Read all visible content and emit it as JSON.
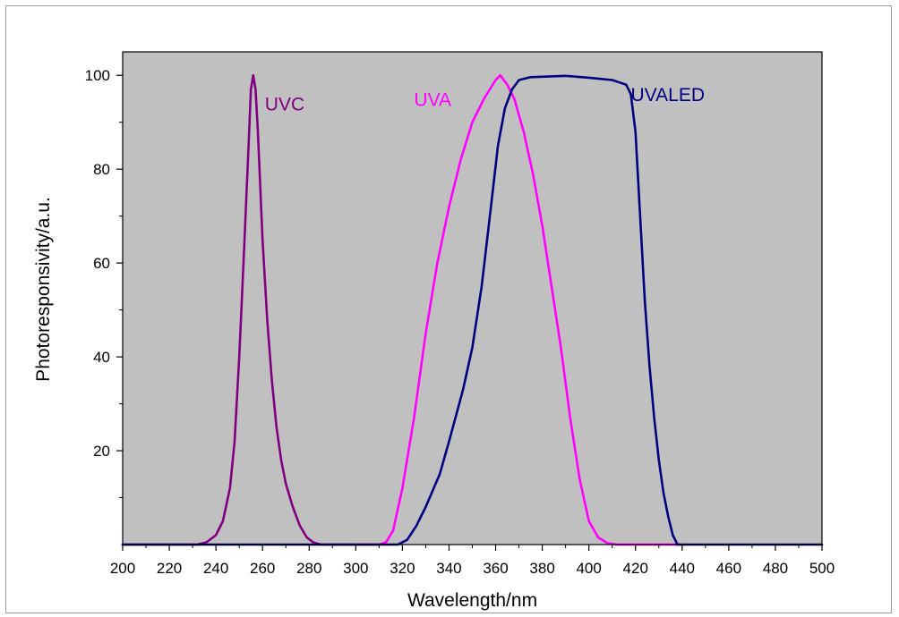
{
  "chart_data": {
    "type": "line",
    "xlabel": "Wavelength/nm",
    "ylabel": "Photoresponsivity/a.u.",
    "xlim": [
      200,
      500
    ],
    "ylim": [
      0,
      105
    ],
    "x_ticks": [
      200,
      220,
      240,
      260,
      280,
      300,
      320,
      340,
      360,
      380,
      400,
      420,
      440,
      460,
      480,
      500
    ],
    "y_ticks": [
      20,
      40,
      60,
      80,
      100
    ],
    "grid": false,
    "background_color": "#c0c0c0",
    "series": [
      {
        "name": "UVC",
        "color": "#800080",
        "label_at": [
          261,
          94
        ],
        "points": [
          [
            200,
            0
          ],
          [
            232,
            0
          ],
          [
            236,
            0.5
          ],
          [
            240,
            2
          ],
          [
            243,
            5
          ],
          [
            246,
            12
          ],
          [
            248,
            22
          ],
          [
            250,
            40
          ],
          [
            252,
            62
          ],
          [
            254,
            85
          ],
          [
            255,
            97
          ],
          [
            256,
            100
          ],
          [
            257,
            97
          ],
          [
            258,
            88
          ],
          [
            260,
            65
          ],
          [
            262,
            48
          ],
          [
            264,
            35
          ],
          [
            266,
            25
          ],
          [
            268,
            18
          ],
          [
            270,
            13
          ],
          [
            273,
            8
          ],
          [
            276,
            4
          ],
          [
            279,
            1.5
          ],
          [
            282,
            0.4
          ],
          [
            285,
            0
          ],
          [
            300,
            0
          ]
        ]
      },
      {
        "name": "UVA",
        "color": "#ff00ff",
        "label_at": [
          325,
          95
        ],
        "points": [
          [
            300,
            0
          ],
          [
            310,
            0
          ],
          [
            313,
            0.5
          ],
          [
            316,
            3
          ],
          [
            320,
            12
          ],
          [
            325,
            27
          ],
          [
            330,
            45
          ],
          [
            335,
            60
          ],
          [
            340,
            72
          ],
          [
            345,
            82
          ],
          [
            350,
            90
          ],
          [
            355,
            95
          ],
          [
            360,
            99
          ],
          [
            362,
            100
          ],
          [
            365,
            98
          ],
          [
            368,
            95
          ],
          [
            372,
            88
          ],
          [
            376,
            79
          ],
          [
            380,
            68
          ],
          [
            384,
            55
          ],
          [
            388,
            42
          ],
          [
            392,
            27
          ],
          [
            396,
            14
          ],
          [
            400,
            5
          ],
          [
            404,
            1.5
          ],
          [
            408,
            0.3
          ],
          [
            412,
            0
          ],
          [
            440,
            0
          ]
        ]
      },
      {
        "name": "UVALED",
        "color": "#000080",
        "label_at": [
          418,
          96
        ],
        "points": [
          [
            200,
            0
          ],
          [
            318,
            0
          ],
          [
            322,
            1
          ],
          [
            326,
            4
          ],
          [
            330,
            8
          ],
          [
            336,
            15
          ],
          [
            340,
            22
          ],
          [
            346,
            33
          ],
          [
            350,
            42
          ],
          [
            354,
            55
          ],
          [
            358,
            72
          ],
          [
            361,
            85
          ],
          [
            364,
            93
          ],
          [
            367,
            97
          ],
          [
            370,
            99
          ],
          [
            375,
            99.6
          ],
          [
            380,
            99.7
          ],
          [
            390,
            99.9
          ],
          [
            400,
            99.5
          ],
          [
            410,
            99
          ],
          [
            416,
            98
          ],
          [
            418,
            96
          ],
          [
            420,
            88
          ],
          [
            422,
            70
          ],
          [
            424,
            52
          ],
          [
            426,
            38
          ],
          [
            428,
            27
          ],
          [
            430,
            18
          ],
          [
            432,
            11
          ],
          [
            434,
            6
          ],
          [
            436,
            2
          ],
          [
            438,
            0
          ],
          [
            500,
            0
          ]
        ]
      }
    ]
  }
}
